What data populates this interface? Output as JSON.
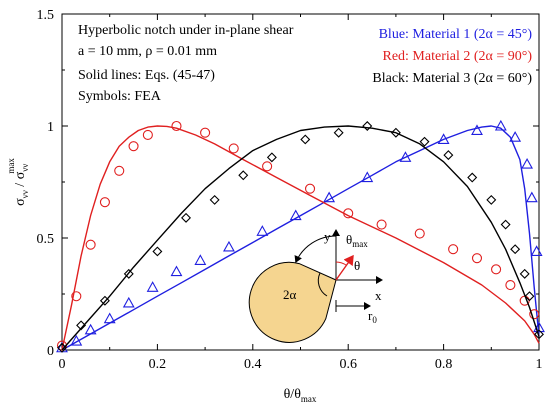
{
  "chart_data": {
    "type": "line",
    "xlabel": "θ/θ",
    "xlabel_sub": "max",
    "ylabel": "σ",
    "ylabel_sub1": "νν",
    "ylabel_mid": " / σ",
    "ylabel_sub2": "νν",
    "ylabel_sup": "max",
    "xlim": [
      0,
      1
    ],
    "ylim": [
      0,
      1.5
    ],
    "xticks": [
      0,
      0.2,
      0.4,
      0.6,
      0.8,
      1
    ],
    "xtick_labels": [
      "0",
      "0.2",
      "0.4",
      "0.6",
      "0.8",
      "1"
    ],
    "yticks": [
      0,
      0.5,
      1,
      1.5
    ],
    "ytick_labels": [
      "0",
      "0.5",
      "1",
      "1.5"
    ],
    "grid": false,
    "annotations": [
      "Hyperbolic notch under in-plane shear",
      "a = 10 mm, ρ = 0.01 mm",
      "Solid lines: Eqs. (45-47)",
      "Symbols: FEA"
    ],
    "legend": [
      {
        "text": "Blue: Material 1 (2α = 45°)",
        "color": "#1f1fe0"
      },
      {
        "text": "Red: Material 2 (2α = 90°)",
        "color": "#e02020"
      },
      {
        "text": "Black: Material 3 (2α = 60°)",
        "color": "#000000"
      }
    ],
    "series": [
      {
        "color": "#1f1fe0",
        "marker": "triangle",
        "line_x": [
          0,
          0.05,
          0.1,
          0.15,
          0.2,
          0.25,
          0.3,
          0.35,
          0.4,
          0.45,
          0.5,
          0.55,
          0.6,
          0.65,
          0.7,
          0.75,
          0.8,
          0.85,
          0.88,
          0.9,
          0.92,
          0.94,
          0.96,
          0.97,
          0.98,
          0.99,
          1.0
        ],
        "line_y": [
          0,
          0.06,
          0.12,
          0.18,
          0.24,
          0.3,
          0.36,
          0.42,
          0.48,
          0.54,
          0.6,
          0.66,
          0.72,
          0.78,
          0.84,
          0.89,
          0.94,
          0.98,
          0.995,
          1.0,
          0.99,
          0.95,
          0.85,
          0.72,
          0.52,
          0.28,
          0.06
        ],
        "points_x": [
          0,
          0.03,
          0.06,
          0.1,
          0.14,
          0.19,
          0.24,
          0.29,
          0.35,
          0.42,
          0.49,
          0.56,
          0.64,
          0.72,
          0.8,
          0.87,
          0.92,
          0.95,
          0.975,
          0.985,
          0.995,
          1.0
        ],
        "points_y": [
          0.01,
          0.04,
          0.09,
          0.14,
          0.21,
          0.28,
          0.35,
          0.4,
          0.46,
          0.53,
          0.6,
          0.68,
          0.77,
          0.86,
          0.94,
          0.98,
          1.0,
          0.95,
          0.83,
          0.68,
          0.44,
          0.1
        ]
      },
      {
        "color": "#e02020",
        "marker": "circle",
        "line_x": [
          0,
          0.02,
          0.04,
          0.06,
          0.08,
          0.1,
          0.12,
          0.14,
          0.16,
          0.18,
          0.2,
          0.22,
          0.24,
          0.28,
          0.32,
          0.38,
          0.45,
          0.52,
          0.6,
          0.7,
          0.8,
          0.88,
          0.93,
          0.97,
          0.99,
          1.0
        ],
        "line_y": [
          0,
          0.2,
          0.42,
          0.6,
          0.74,
          0.84,
          0.91,
          0.95,
          0.98,
          0.995,
          1.0,
          0.998,
          0.99,
          0.96,
          0.92,
          0.85,
          0.77,
          0.69,
          0.6,
          0.5,
          0.39,
          0.29,
          0.21,
          0.13,
          0.07,
          0.03
        ],
        "points_x": [
          0,
          0.03,
          0.06,
          0.09,
          0.12,
          0.15,
          0.18,
          0.24,
          0.3,
          0.36,
          0.43,
          0.52,
          0.6,
          0.67,
          0.75,
          0.82,
          0.87,
          0.91,
          0.94,
          0.97,
          0.99
        ],
        "points_y": [
          0.02,
          0.24,
          0.47,
          0.66,
          0.8,
          0.91,
          0.96,
          1.0,
          0.97,
          0.9,
          0.82,
          0.72,
          0.61,
          0.56,
          0.52,
          0.45,
          0.41,
          0.36,
          0.29,
          0.22,
          0.16
        ]
      },
      {
        "color": "#000000",
        "marker": "diamond",
        "line_x": [
          0,
          0.05,
          0.1,
          0.15,
          0.2,
          0.25,
          0.3,
          0.35,
          0.4,
          0.45,
          0.5,
          0.55,
          0.6,
          0.65,
          0.7,
          0.75,
          0.8,
          0.85,
          0.9,
          0.93,
          0.96,
          0.98,
          1.0
        ],
        "line_y": [
          0,
          0.12,
          0.24,
          0.37,
          0.49,
          0.61,
          0.72,
          0.81,
          0.89,
          0.94,
          0.98,
          0.995,
          1.0,
          0.99,
          0.97,
          0.92,
          0.84,
          0.73,
          0.57,
          0.45,
          0.3,
          0.19,
          0.06
        ],
        "points_x": [
          0,
          0.04,
          0.09,
          0.14,
          0.2,
          0.26,
          0.32,
          0.38,
          0.44,
          0.51,
          0.58,
          0.64,
          0.7,
          0.76,
          0.81,
          0.86,
          0.9,
          0.93,
          0.95,
          0.97,
          0.98,
          1.0
        ],
        "points_y": [
          0.01,
          0.11,
          0.22,
          0.34,
          0.44,
          0.59,
          0.67,
          0.78,
          0.86,
          0.94,
          0.97,
          1.0,
          0.97,
          0.93,
          0.87,
          0.77,
          0.67,
          0.56,
          0.45,
          0.34,
          0.24,
          0.07
        ]
      }
    ]
  },
  "inset": {
    "y_label": "y",
    "x_label": "x",
    "theta_max_label": "θ",
    "theta_max_sub": "max",
    "theta_label": "θ",
    "alpha_label": "2α",
    "r0_label": "r",
    "r0_sub": "0",
    "fill_color": "#f5d590"
  }
}
